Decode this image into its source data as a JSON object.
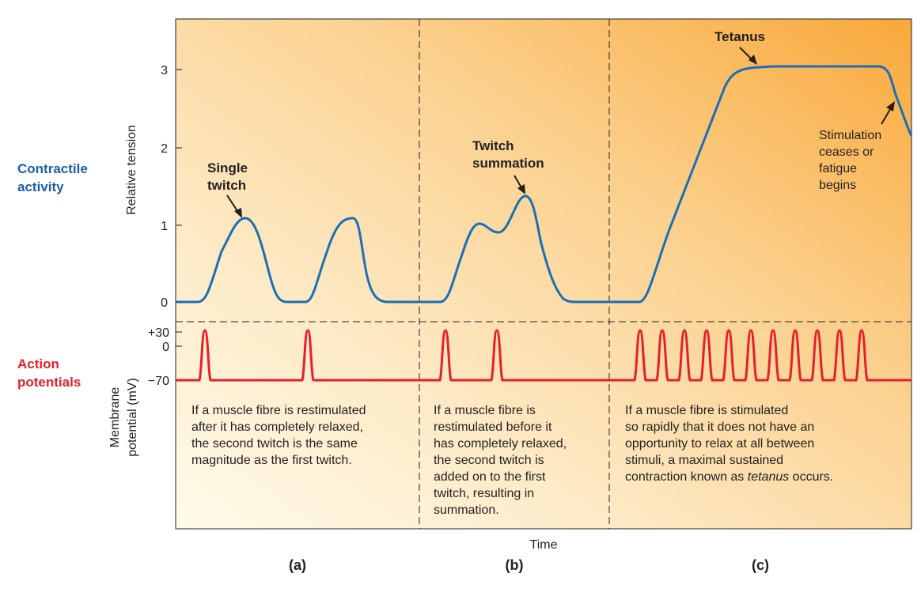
{
  "labels": {
    "contractile": [
      "Contractile",
      "activity"
    ],
    "action": [
      "Action",
      "potentials"
    ],
    "y_top": "Relative tension",
    "y_bottom": [
      "Membrane",
      "potential (mV)"
    ],
    "x_axis": "Time",
    "tension_ticks": [
      "0",
      "1",
      "2",
      "3"
    ],
    "mv_ticks": [
      "+30",
      "0",
      "−70"
    ]
  },
  "callouts": {
    "single": [
      "Single",
      "twitch"
    ],
    "summation": [
      "Twitch",
      "summation"
    ],
    "tetanus": "Tetanus",
    "cease": [
      "Stimulation",
      "ceases or",
      "fatigue",
      "begins"
    ]
  },
  "panels": [
    {
      "label": "(a)",
      "text": [
        "If a muscle fibre is restimulated",
        "after it has completely relaxed,",
        "the second twitch is the same",
        "magnitude as the first twitch."
      ]
    },
    {
      "label": "(b)",
      "text": [
        "If a muscle fibre is",
        "restimulated before it",
        "has completely relaxed,",
        "the second twitch is",
        "added on to the first",
        "twitch, resulting in",
        "summation."
      ]
    },
    {
      "label": "(c)",
      "text": [
        "If a muscle fibre is stimulated",
        "so rapidly that it does not have an",
        "opportunity to relax at all between",
        "stimuli, a maximal sustained",
        "contraction known as |tetanus| occurs."
      ]
    }
  ],
  "colors": {
    "tension_curve": "#1a6fb5",
    "action_potential": "#e5202a",
    "side_blue": "#1a5fa8",
    "side_red": "#e5202a"
  }
}
